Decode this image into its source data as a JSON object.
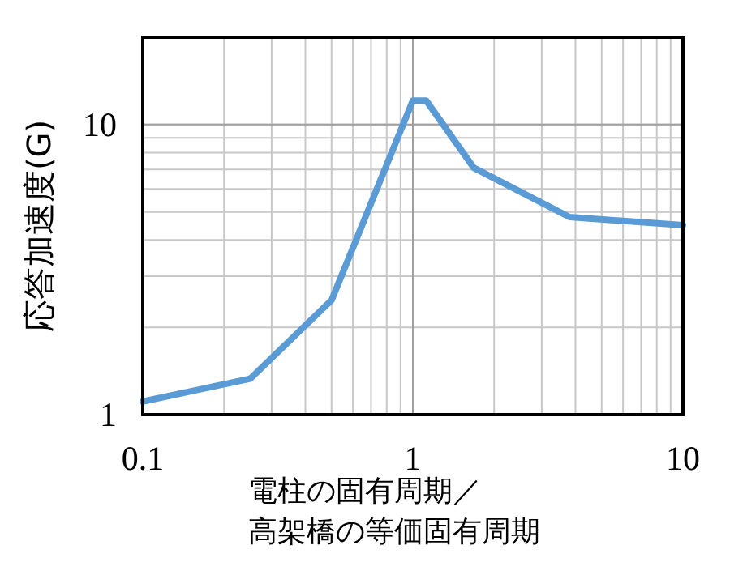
{
  "chart_data": {
    "type": "line",
    "xlabel": "電柱の固有周期／高架橋の等価固有周期",
    "ylabel": "応答加速度(G)",
    "x": [
      0.1,
      0.25,
      0.5,
      1.0,
      1.12,
      1.68,
      3.8,
      10
    ],
    "series": [
      {
        "color": "#5b9bd5",
        "values": [
          1.11,
          1.33,
          2.48,
          12.1,
          12.1,
          7.1,
          4.8,
          4.5
        ]
      }
    ],
    "log": "xy",
    "xlim": [
      0.1,
      10
    ],
    "ylim": [
      1,
      20
    ],
    "xticks": [
      0.1,
      1,
      10
    ],
    "yticks": [
      1,
      10
    ],
    "grid": true,
    "marker": "none",
    "line_style": "solid"
  }
}
